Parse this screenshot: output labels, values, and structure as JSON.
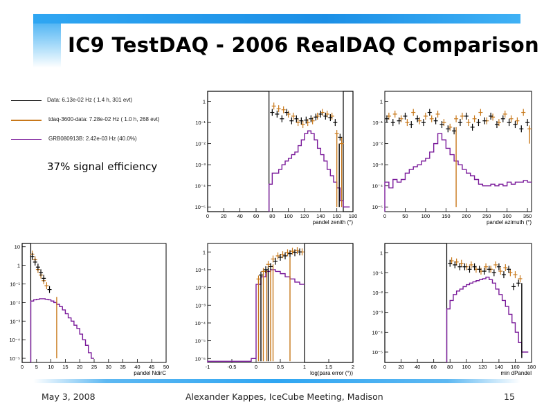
{
  "slide": {
    "title": "IC9 TestDAQ - 2006 RealDAQ Comparison",
    "annotation": "37% signal efficiency",
    "footer_left": "May 3, 2008",
    "footer_center": "Alexander Kappes, IceCube Meeting, Madison",
    "footer_right": "15"
  },
  "legend": [
    {
      "label": "Data:  6.13e-02 Hz ( 1.4 h, 301 evt)",
      "color": "#000000"
    },
    {
      "label": "tdaq-3600-data:  7.28e-02 Hz ( 1.0 h, 268 evt)",
      "color": "#c8781a"
    },
    {
      "label": "GRB080913B:            2.42e-03 Hz (40.0%)",
      "color": "#7a1a9a"
    }
  ],
  "colors": {
    "data": "#000000",
    "tdaq": "#c8781a",
    "grb": "#7a1a9a",
    "title_bar": "#1b8fe6"
  },
  "chart_data": [
    {
      "type": "line",
      "log_y": true,
      "xlabel": "pandel zenith (°)",
      "xlim": [
        0,
        180
      ],
      "ylim": [
        6e-06,
        3
      ],
      "xticks": [
        0,
        20,
        40,
        60,
        80,
        100,
        120,
        140,
        160,
        180
      ],
      "yticks": [
        {
          "v": 1,
          "t": "1"
        },
        {
          "v": 0.1,
          "t": "10⁻¹"
        },
        {
          "v": 0.01,
          "t": "10⁻²"
        },
        {
          "v": 0.001,
          "t": "10⁻³"
        },
        {
          "v": 0.0001,
          "t": "10⁻⁴"
        },
        {
          "v": 1e-05,
          "t": "10⁻⁵"
        }
      ],
      "cut_box": [
        [
          0,
          76
        ],
        [
          168,
          180
        ]
      ],
      "grb": {
        "edges_start": 76,
        "width": 4,
        "values": [
          0.00012,
          0.0004,
          0.0004,
          0.0006,
          0.001,
          0.0015,
          0.002,
          0.003,
          0.004,
          0.008,
          0.015,
          0.03,
          0.04,
          0.03,
          0.015,
          0.006,
          0.003,
          0.0015,
          0.0006,
          0.0003,
          0.00015,
          8e-05,
          2e-05,
          1e-05,
          1e-05
        ]
      },
      "data": {
        "x": [
          80,
          86,
          92,
          98,
          104,
          110,
          116,
          122,
          128,
          134,
          140,
          146,
          152,
          158,
          164
        ],
        "y": [
          0.3,
          0.25,
          0.15,
          0.3,
          0.12,
          0.15,
          0.12,
          0.13,
          0.15,
          0.18,
          0.25,
          0.2,
          0.17,
          0.1,
          0.02
        ]
      },
      "tdaq": {
        "x": [
          82,
          88,
          94,
          100,
          106,
          112,
          118,
          124,
          130,
          136,
          142,
          148,
          154,
          160,
          166
        ],
        "y": [
          0.6,
          0.45,
          0.4,
          0.25,
          0.2,
          0.1,
          0.08,
          0.1,
          0.12,
          0.2,
          0.3,
          0.25,
          0.2,
          0.03,
          0.01
        ]
      },
      "spikes": [
        {
          "x": 160,
          "ymin": 1e-05,
          "ymax": 0.03,
          "color": "#c8781a"
        },
        {
          "x": 166,
          "ymin": 1e-05,
          "ymax": 0.02,
          "color": "#c8781a"
        },
        {
          "x": 163,
          "ymin": 1e-05,
          "ymax": 0.01,
          "color": "#000000"
        }
      ]
    },
    {
      "type": "line",
      "log_y": true,
      "xlabel": "pandel azimuth (°)",
      "xlim": [
        0,
        360
      ],
      "ylim": [
        6e-06,
        3
      ],
      "xticks": [
        0,
        50,
        100,
        150,
        200,
        250,
        300,
        350
      ],
      "yticks": [
        {
          "v": 1,
          "t": "1"
        },
        {
          "v": 0.1,
          "t": "10⁻¹"
        },
        {
          "v": 0.01,
          "t": "10⁻²"
        },
        {
          "v": 0.001,
          "t": "10⁻³"
        },
        {
          "v": 0.0001,
          "t": "10⁻⁴"
        },
        {
          "v": 1e-05,
          "t": "10⁻⁵"
        }
      ],
      "cut_box": [],
      "grb": {
        "edges_start": 0,
        "width": 10,
        "values": [
          0.00015,
          8e-05,
          0.0002,
          0.00015,
          0.0002,
          0.0004,
          0.0006,
          0.0008,
          0.001,
          0.0015,
          0.002,
          0.004,
          0.01,
          0.03,
          0.015,
          0.006,
          0.003,
          0.0015,
          0.001,
          0.0006,
          0.0004,
          0.0003,
          0.0002,
          0.00012,
          0.0001,
          0.0001,
          0.00012,
          0.0001,
          0.00012,
          0.0001,
          0.00015,
          0.00012,
          0.00015,
          0.00015,
          0.00018,
          0.00015
        ]
      },
      "data": {
        "x": [
          5,
          20,
          35,
          50,
          65,
          80,
          95,
          110,
          125,
          140,
          155,
          170,
          185,
          200,
          215,
          230,
          245,
          260,
          275,
          290,
          305,
          320,
          335,
          350
        ],
        "y": [
          0.15,
          0.1,
          0.12,
          0.2,
          0.08,
          0.15,
          0.1,
          0.3,
          0.12,
          0.08,
          0.05,
          0.04,
          0.1,
          0.2,
          0.06,
          0.1,
          0.12,
          0.2,
          0.08,
          0.15,
          0.1,
          0.08,
          0.05,
          0.1
        ]
      },
      "tdaq": {
        "x": [
          10,
          25,
          40,
          55,
          70,
          85,
          100,
          115,
          130,
          145,
          160,
          175,
          190,
          205,
          220,
          235,
          250,
          265,
          280,
          295,
          310,
          325,
          340,
          355
        ],
        "y": [
          0.2,
          0.25,
          0.15,
          0.1,
          0.3,
          0.12,
          0.2,
          0.15,
          0.25,
          0.1,
          0.06,
          0.15,
          0.2,
          0.1,
          0.15,
          0.3,
          0.12,
          0.18,
          0.1,
          0.25,
          0.15,
          0.12,
          0.3,
          0.05
        ]
      },
      "spikes": [
        {
          "x": 175,
          "ymin": 1e-05,
          "ymax": 0.06,
          "color": "#c8781a"
        },
        {
          "x": 355,
          "ymin": 0.01,
          "ymax": 0.06,
          "color": "#c8781a"
        }
      ]
    },
    {
      "type": "line",
      "log_y": true,
      "xlabel": "pandel NdirC",
      "xlim": [
        0,
        50
      ],
      "ylim": [
        6e-06,
        15
      ],
      "xticks": [
        0,
        5,
        10,
        15,
        20,
        25,
        30,
        35,
        40,
        45,
        50
      ],
      "yticks": [
        {
          "v": 10,
          "t": "10"
        },
        {
          "v": 1,
          "t": "1"
        },
        {
          "v": 0.1,
          "t": "10⁻¹"
        },
        {
          "v": 0.01,
          "t": "10⁻²"
        },
        {
          "v": 0.001,
          "t": "10⁻³"
        },
        {
          "v": 0.0001,
          "t": "10⁻⁴"
        },
        {
          "v": 1e-05,
          "t": "10⁻⁵"
        }
      ],
      "cut_box": [
        [
          0,
          3
        ]
      ],
      "grb": {
        "edges_start": 3,
        "width": 1,
        "values": [
          0.012,
          0.014,
          0.015,
          0.016,
          0.016,
          0.015,
          0.014,
          0.012,
          0.01,
          0.008,
          0.006,
          0.004,
          0.0025,
          0.0015,
          0.001,
          0.0006,
          0.0004,
          0.0002,
          0.0001,
          5e-05,
          2e-05,
          1e-05
        ]
      },
      "data": {
        "x": [
          3.5,
          4.5,
          5.5,
          6.5,
          7.5,
          9.5
        ],
        "y": [
          3,
          1.5,
          0.8,
          0.4,
          0.2,
          0.05
        ]
      },
      "tdaq": {
        "x": [
          3.5,
          4.5,
          5.5,
          6.5,
          7.5,
          8.5
        ],
        "y": [
          4,
          2,
          0.6,
          0.3,
          0.15,
          0.08
        ]
      },
      "spikes": [
        {
          "x": 12,
          "ymin": 1e-05,
          "ymax": 0.02,
          "color": "#c8781a"
        }
      ]
    },
    {
      "type": "line",
      "log_y": true,
      "xlabel": "log(para error (°))",
      "xlim": [
        -1,
        2
      ],
      "ylim": [
        6e-07,
        3
      ],
      "xticks": [
        -1,
        -0.5,
        0,
        0.5,
        1,
        1.5,
        2
      ],
      "yticks": [
        {
          "v": 1,
          "t": "1"
        },
        {
          "v": 0.1,
          "t": "10⁻¹"
        },
        {
          "v": 0.01,
          "t": "10⁻²"
        },
        {
          "v": 0.001,
          "t": "10⁻³"
        },
        {
          "v": 0.0001,
          "t": "10⁻⁴"
        },
        {
          "v": 1e-05,
          "t": "10⁻⁵"
        },
        {
          "v": 1e-06,
          "t": "10⁻⁶"
        }
      ],
      "cut_box": [
        [
          1,
          2
        ]
      ],
      "grb": {
        "edges_start": -1,
        "width": 0.1,
        "values": [
          7e-07,
          7e-07,
          7e-07,
          7e-07,
          7e-07,
          7e-07,
          7e-07,
          7e-07,
          7e-07,
          1e-06,
          0.015,
          0.04,
          0.08,
          0.1,
          0.08,
          0.06,
          0.04,
          0.03,
          0.02,
          0.015
        ]
      },
      "data": {
        "x": [
          0.1,
          0.2,
          0.3,
          0.4,
          0.5,
          0.6,
          0.7,
          0.8,
          0.9
        ],
        "y": [
          0.05,
          0.1,
          0.15,
          0.3,
          0.5,
          0.6,
          0.8,
          0.9,
          1.0
        ]
      },
      "tdaq": {
        "x": [
          0.05,
          0.15,
          0.25,
          0.35,
          0.45,
          0.55,
          0.65,
          0.75,
          0.85,
          0.95
        ],
        "y": [
          0.03,
          0.08,
          0.2,
          0.4,
          0.6,
          0.7,
          0.9,
          1.1,
          1.2,
          1.0
        ]
      },
      "spikes": [
        {
          "x": 0.05,
          "ymin": 7e-07,
          "ymax": 0.03,
          "color": "#c8781a"
        },
        {
          "x": 0.15,
          "ymin": 7e-07,
          "ymax": 0.06,
          "color": "#c8781a"
        },
        {
          "x": 0.22,
          "ymin": 7e-07,
          "ymax": 0.1,
          "color": "#c8781a"
        },
        {
          "x": 0.3,
          "ymin": 7e-07,
          "ymax": 0.1,
          "color": "#c8781a"
        },
        {
          "x": 0.35,
          "ymin": 7e-07,
          "ymax": 0.2,
          "color": "#c8781a"
        },
        {
          "x": 0.7,
          "ymin": 7e-07,
          "ymax": 0.5,
          "color": "#c8781a"
        },
        {
          "x": 0.1,
          "ymin": 7e-07,
          "ymax": 0.05,
          "color": "#000000"
        },
        {
          "x": 0.25,
          "ymin": 7e-07,
          "ymax": 0.15,
          "color": "#000000"
        }
      ]
    },
    {
      "type": "line",
      "log_y": true,
      "xlabel": "min dPandel",
      "xlim": [
        0,
        180
      ],
      "ylim": [
        3e-06,
        3
      ],
      "xticks": [
        0,
        20,
        40,
        60,
        80,
        100,
        120,
        140,
        160,
        180
      ],
      "yticks": [
        {
          "v": 1,
          "t": "1"
        },
        {
          "v": 0.1,
          "t": "10⁻¹"
        },
        {
          "v": 0.01,
          "t": "10⁻²"
        },
        {
          "v": 0.001,
          "t": "10⁻³"
        },
        {
          "v": 0.0001,
          "t": "10⁻⁴"
        },
        {
          "v": 1e-05,
          "t": "10⁻⁵"
        }
      ],
      "cut_box": [
        [
          0,
          76
        ]
      ],
      "grb": {
        "edges_start": 76,
        "width": 4,
        "values": [
          0.0015,
          0.004,
          0.008,
          0.012,
          0.015,
          0.02,
          0.025,
          0.03,
          0.035,
          0.04,
          0.045,
          0.05,
          0.06,
          0.045,
          0.03,
          0.015,
          0.008,
          0.004,
          0.002,
          0.0008,
          0.0003,
          0.0001,
          3e-05,
          1e-05,
          1e-05
        ]
      },
      "data": {
        "x": [
          80,
          86,
          92,
          98,
          104,
          110,
          116,
          122,
          128,
          134,
          140,
          146,
          152,
          158,
          164
        ],
        "y": [
          0.3,
          0.25,
          0.2,
          0.2,
          0.15,
          0.2,
          0.15,
          0.12,
          0.15,
          0.1,
          0.2,
          0.08,
          0.15,
          0.02,
          0.03
        ]
      },
      "tdaq": {
        "x": [
          82,
          88,
          94,
          100,
          106,
          112,
          118,
          124,
          130,
          136,
          142,
          148,
          154,
          160,
          166
        ],
        "y": [
          0.4,
          0.35,
          0.3,
          0.2,
          0.25,
          0.15,
          0.12,
          0.2,
          0.15,
          0.25,
          0.12,
          0.18,
          0.1,
          0.08,
          0.05
        ]
      },
      "spikes": [
        {
          "x": 168,
          "ymin": 5e-06,
          "ymax": 0.03,
          "color": "#000000"
        }
      ]
    }
  ]
}
